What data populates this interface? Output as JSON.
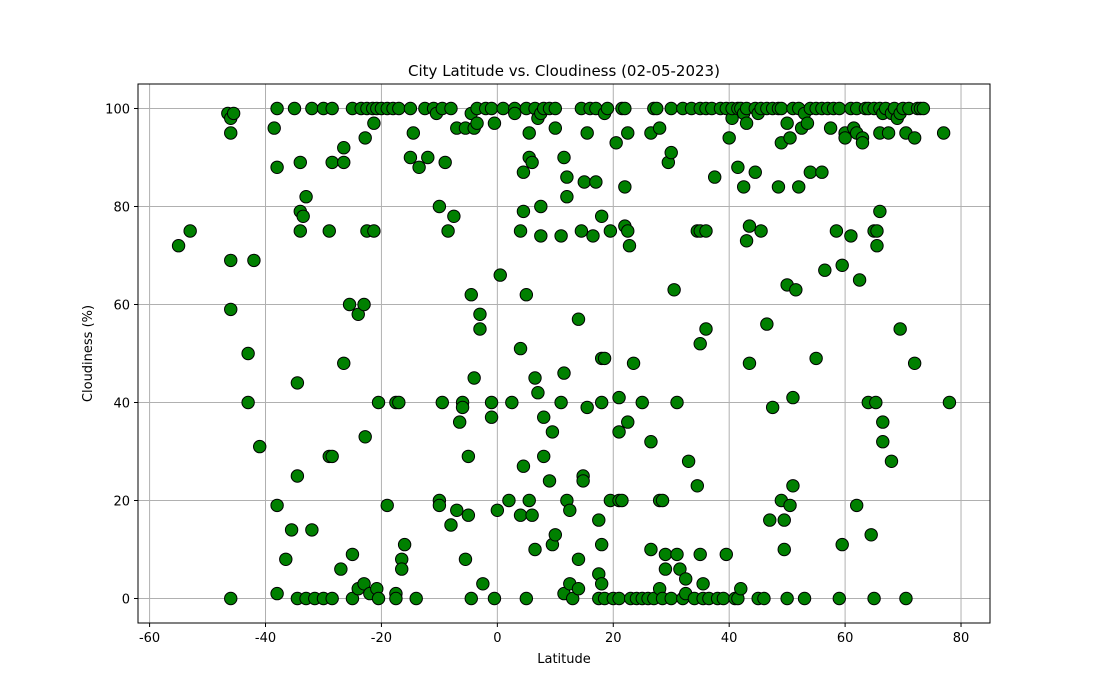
{
  "chart_data": {
    "type": "scatter",
    "title": "City Latitude vs. Cloudiness (02-05-2023)",
    "xlabel": "Latitude",
    "ylabel": "Cloudiness (%)",
    "xlim": [
      -62,
      85
    ],
    "ylim": [
      -5,
      105
    ],
    "xticks": [
      -60,
      -40,
      -20,
      0,
      20,
      40,
      60,
      80
    ],
    "yticks": [
      0,
      20,
      40,
      60,
      80,
      100
    ],
    "grid": true,
    "marker_color": "#008000",
    "marker_edge_color": "#000000",
    "points": [
      [
        -55,
        72
      ],
      [
        -53,
        75
      ],
      [
        -46.5,
        99
      ],
      [
        -46,
        98
      ],
      [
        -46,
        95
      ],
      [
        -46,
        69
      ],
      [
        -46,
        59
      ],
      [
        -46,
        0
      ],
      [
        -45.5,
        99
      ],
      [
        -43,
        50
      ],
      [
        -43,
        40
      ],
      [
        -42,
        69
      ],
      [
        -41,
        31
      ],
      [
        -38.5,
        96
      ],
      [
        -38,
        88
      ],
      [
        -38,
        100
      ],
      [
        -38,
        19
      ],
      [
        -38,
        1
      ],
      [
        -36.5,
        8
      ],
      [
        -35.5,
        14
      ],
      [
        -35,
        100
      ],
      [
        -34.5,
        44
      ],
      [
        -34.5,
        25
      ],
      [
        -34.5,
        0
      ],
      [
        -34,
        89
      ],
      [
        -34,
        79
      ],
      [
        -34,
        75
      ],
      [
        -33.5,
        78
      ],
      [
        -33,
        82
      ],
      [
        -33,
        0
      ],
      [
        -32,
        100
      ],
      [
        -32,
        14
      ],
      [
        -31.5,
        0
      ],
      [
        -30,
        100
      ],
      [
        -30,
        0
      ],
      [
        -29,
        29
      ],
      [
        -29,
        75
      ],
      [
        -28.5,
        89
      ],
      [
        -28.5,
        100
      ],
      [
        -28.5,
        29
      ],
      [
        -28.5,
        0
      ],
      [
        -27,
        6
      ],
      [
        -26.5,
        92
      ],
      [
        -26.5,
        89
      ],
      [
        -26.5,
        48
      ],
      [
        -25.5,
        60
      ],
      [
        -25,
        100
      ],
      [
        -25,
        9
      ],
      [
        -25,
        0
      ],
      [
        -24,
        58
      ],
      [
        -24,
        2
      ],
      [
        -23.5,
        100
      ],
      [
        -23,
        60
      ],
      [
        -23,
        3
      ],
      [
        -22.8,
        94
      ],
      [
        -22.8,
        33
      ],
      [
        -22.5,
        100
      ],
      [
        -22.5,
        75
      ],
      [
        -22,
        1
      ],
      [
        -21.5,
        100
      ],
      [
        -21.3,
        97
      ],
      [
        -21.3,
        75
      ],
      [
        -20.8,
        100
      ],
      [
        -20.8,
        2
      ],
      [
        -20.5,
        40
      ],
      [
        -20.5,
        0
      ],
      [
        -20,
        100
      ],
      [
        -19,
        100
      ],
      [
        -19,
        19
      ],
      [
        -18,
        100
      ],
      [
        -17.5,
        40
      ],
      [
        -17.5,
        1
      ],
      [
        -17.5,
        0
      ],
      [
        -17,
        100
      ],
      [
        -17,
        40
      ],
      [
        -16.5,
        8
      ],
      [
        -16.5,
        6
      ],
      [
        -16,
        11
      ],
      [
        -15,
        90
      ],
      [
        -15,
        100
      ],
      [
        -14.5,
        95
      ],
      [
        -14,
        0
      ],
      [
        -13.5,
        88
      ],
      [
        -12.5,
        100
      ],
      [
        -12,
        90
      ],
      [
        -11,
        100
      ],
      [
        -10.5,
        99
      ],
      [
        -10,
        20
      ],
      [
        -10,
        19
      ],
      [
        -10,
        80
      ],
      [
        -9.5,
        100
      ],
      [
        -9.5,
        40
      ],
      [
        -9,
        89
      ],
      [
        -8.5,
        75
      ],
      [
        -8,
        15
      ],
      [
        -8,
        100
      ],
      [
        -7.5,
        78
      ],
      [
        -7,
        18
      ],
      [
        -7,
        96
      ],
      [
        -6.5,
        36
      ],
      [
        -6,
        40
      ],
      [
        -6,
        39
      ],
      [
        -5.5,
        96
      ],
      [
        -5.5,
        8
      ],
      [
        -5,
        17
      ],
      [
        -5,
        29
      ],
      [
        -4.5,
        62
      ],
      [
        -4.5,
        0
      ],
      [
        -4.5,
        99
      ],
      [
        -4,
        96
      ],
      [
        -4,
        45
      ],
      [
        -3.5,
        100
      ],
      [
        -3.5,
        97
      ],
      [
        -3,
        55
      ],
      [
        -3,
        58
      ],
      [
        -2.5,
        3
      ],
      [
        -2,
        100
      ],
      [
        -1,
        100
      ],
      [
        -1,
        40
      ],
      [
        -1,
        37
      ],
      [
        -0.5,
        97
      ],
      [
        -0.5,
        0
      ],
      [
        0,
        18
      ],
      [
        0.5,
        66
      ],
      [
        1,
        100
      ],
      [
        2,
        20
      ],
      [
        2.5,
        40
      ],
      [
        3,
        100
      ],
      [
        3,
        99
      ],
      [
        4,
        75
      ],
      [
        4,
        51
      ],
      [
        4,
        17
      ],
      [
        4.5,
        87
      ],
      [
        4.5,
        79
      ],
      [
        4.5,
        27
      ],
      [
        5,
        100
      ],
      [
        5,
        62
      ],
      [
        5,
        0
      ],
      [
        5.5,
        95
      ],
      [
        5.5,
        20
      ],
      [
        5.5,
        90
      ],
      [
        6,
        89
      ],
      [
        6,
        17
      ],
      [
        6.5,
        100
      ],
      [
        6.5,
        45
      ],
      [
        6.5,
        10
      ],
      [
        7,
        98
      ],
      [
        7,
        42
      ],
      [
        7.5,
        99
      ],
      [
        7.5,
        80
      ],
      [
        7.5,
        74
      ],
      [
        8,
        100
      ],
      [
        8,
        37
      ],
      [
        8,
        29
      ],
      [
        9,
        100
      ],
      [
        9,
        24
      ],
      [
        9.5,
        34
      ],
      [
        9.5,
        11
      ],
      [
        10,
        100
      ],
      [
        10,
        13
      ],
      [
        10,
        96
      ],
      [
        11,
        74
      ],
      [
        11,
        40
      ],
      [
        11.5,
        90
      ],
      [
        11.5,
        46
      ],
      [
        11.5,
        1
      ],
      [
        12,
        86
      ],
      [
        12,
        82
      ],
      [
        12,
        20
      ],
      [
        12.5,
        18
      ],
      [
        12.5,
        3
      ],
      [
        13,
        0
      ],
      [
        14,
        57
      ],
      [
        14,
        8
      ],
      [
        14,
        2
      ],
      [
        14.5,
        100
      ],
      [
        14.5,
        75
      ],
      [
        15,
        85
      ],
      [
        14.8,
        25
      ],
      [
        14.8,
        24
      ],
      [
        15.5,
        39
      ],
      [
        15.5,
        95
      ],
      [
        16,
        100
      ],
      [
        16.5,
        74
      ],
      [
        17,
        100
      ],
      [
        17,
        85
      ],
      [
        17.5,
        0
      ],
      [
        17.5,
        16
      ],
      [
        17.5,
        5
      ],
      [
        18,
        78
      ],
      [
        18,
        49
      ],
      [
        18,
        40
      ],
      [
        18,
        11
      ],
      [
        18,
        3
      ],
      [
        18.5,
        99
      ],
      [
        18.5,
        49
      ],
      [
        18.5,
        0
      ],
      [
        19,
        100
      ],
      [
        19.5,
        75
      ],
      [
        19.5,
        20
      ],
      [
        20,
        0
      ],
      [
        20.5,
        93
      ],
      [
        21,
        41
      ],
      [
        21,
        34
      ],
      [
        21,
        0
      ],
      [
        21,
        20
      ],
      [
        21.5,
        100
      ],
      [
        21.5,
        20
      ],
      [
        22,
        84
      ],
      [
        22,
        76
      ],
      [
        22,
        100
      ],
      [
        22.5,
        95
      ],
      [
        22.5,
        75
      ],
      [
        22.5,
        36
      ],
      [
        22.8,
        72
      ],
      [
        23,
        0
      ],
      [
        23.5,
        48
      ],
      [
        24,
        0
      ],
      [
        25,
        40
      ],
      [
        25,
        0
      ],
      [
        26,
        0
      ],
      [
        26.5,
        32
      ],
      [
        26.5,
        95
      ],
      [
        26.5,
        10
      ],
      [
        27,
        100
      ],
      [
        27,
        0
      ],
      [
        27.5,
        100
      ],
      [
        28,
        96
      ],
      [
        28,
        2
      ],
      [
        28,
        20
      ],
      [
        28.5,
        20
      ],
      [
        28.5,
        0
      ],
      [
        29,
        6
      ],
      [
        29,
        9
      ],
      [
        29.5,
        89
      ],
      [
        30,
        100
      ],
      [
        30,
        91
      ],
      [
        30,
        0
      ],
      [
        30.5,
        63
      ],
      [
        31,
        9
      ],
      [
        31,
        40
      ],
      [
        31.5,
        6
      ],
      [
        32,
        0
      ],
      [
        32,
        100
      ],
      [
        32.5,
        1
      ],
      [
        32.5,
        4
      ],
      [
        33,
        28
      ],
      [
        33.5,
        100
      ],
      [
        34,
        0
      ],
      [
        34.5,
        23
      ],
      [
        34.5,
        75
      ],
      [
        35,
        100
      ],
      [
        35,
        52
      ],
      [
        35,
        75
      ],
      [
        35,
        9
      ],
      [
        35.5,
        3
      ],
      [
        35.5,
        0
      ],
      [
        36,
        100
      ],
      [
        36,
        55
      ],
      [
        36,
        75
      ],
      [
        36.5,
        0
      ],
      [
        37,
        100
      ],
      [
        37.5,
        86
      ],
      [
        38,
        0
      ],
      [
        38.5,
        100
      ],
      [
        39,
        0
      ],
      [
        39.5,
        100
      ],
      [
        39.5,
        9
      ],
      [
        40,
        94
      ],
      [
        40.5,
        98
      ],
      [
        40.5,
        100
      ],
      [
        41,
        0
      ],
      [
        41.5,
        100
      ],
      [
        41.5,
        0
      ],
      [
        41.5,
        88
      ],
      [
        42,
        2
      ],
      [
        42,
        100
      ],
      [
        42.5,
        99
      ],
      [
        42.5,
        84
      ],
      [
        43,
        73
      ],
      [
        43,
        100
      ],
      [
        43,
        97
      ],
      [
        43.5,
        76
      ],
      [
        43.5,
        48
      ],
      [
        44.5,
        100
      ],
      [
        44.5,
        87
      ],
      [
        45,
        0
      ],
      [
        45,
        99
      ],
      [
        45.5,
        100
      ],
      [
        45.5,
        75
      ],
      [
        46,
        0
      ],
      [
        46.5,
        56
      ],
      [
        46.5,
        100
      ],
      [
        47,
        16
      ],
      [
        47.5,
        100
      ],
      [
        47.5,
        39
      ],
      [
        48.5,
        100
      ],
      [
        48.5,
        84
      ],
      [
        49,
        20
      ],
      [
        49,
        93
      ],
      [
        49,
        100
      ],
      [
        49.5,
        16
      ],
      [
        49.5,
        10
      ],
      [
        50,
        97
      ],
      [
        50,
        64
      ],
      [
        50,
        0
      ],
      [
        50.5,
        94
      ],
      [
        50.5,
        19
      ],
      [
        51,
        100
      ],
      [
        51,
        23
      ],
      [
        51,
        41
      ],
      [
        51.5,
        63
      ],
      [
        52,
        100
      ],
      [
        52,
        84
      ],
      [
        52.5,
        96
      ],
      [
        53,
        99
      ],
      [
        53,
        0
      ],
      [
        53.5,
        97
      ],
      [
        54,
        100
      ],
      [
        54,
        87
      ],
      [
        55,
        49
      ],
      [
        55,
        100
      ],
      [
        56,
        100
      ],
      [
        56,
        87
      ],
      [
        56.5,
        67
      ],
      [
        57,
        100
      ],
      [
        57.5,
        96
      ],
      [
        58,
        100
      ],
      [
        58.5,
        75
      ],
      [
        59,
        100
      ],
      [
        59,
        0
      ],
      [
        59.5,
        68
      ],
      [
        59.5,
        11
      ],
      [
        60,
        95
      ],
      [
        60,
        94
      ],
      [
        61,
        74
      ],
      [
        61,
        100
      ],
      [
        61.5,
        96
      ],
      [
        62,
        95
      ],
      [
        62,
        19
      ],
      [
        62,
        100
      ],
      [
        62.5,
        65
      ],
      [
        63,
        94
      ],
      [
        63,
        93
      ],
      [
        63.5,
        100
      ],
      [
        64,
        40
      ],
      [
        64,
        100
      ],
      [
        64.5,
        13
      ],
      [
        65,
        100
      ],
      [
        65,
        75
      ],
      [
        65,
        0
      ],
      [
        65.3,
        40
      ],
      [
        65.5,
        72
      ],
      [
        65.5,
        75
      ],
      [
        66,
        79
      ],
      [
        66,
        100
      ],
      [
        66,
        95
      ],
      [
        66.5,
        99
      ],
      [
        66.5,
        36
      ],
      [
        66.5,
        32
      ],
      [
        67,
        100
      ],
      [
        67.5,
        95
      ],
      [
        68,
        99
      ],
      [
        68,
        28
      ],
      [
        68.5,
        100
      ],
      [
        69,
        98
      ],
      [
        69.5,
        99
      ],
      [
        69.5,
        55
      ],
      [
        70,
        100
      ],
      [
        70.5,
        95
      ],
      [
        70.5,
        0
      ],
      [
        71,
        100
      ],
      [
        72,
        94
      ],
      [
        72,
        48
      ],
      [
        72.5,
        100
      ],
      [
        73,
        100
      ],
      [
        73.5,
        100
      ],
      [
        77,
        95
      ],
      [
        78,
        40
      ]
    ]
  }
}
